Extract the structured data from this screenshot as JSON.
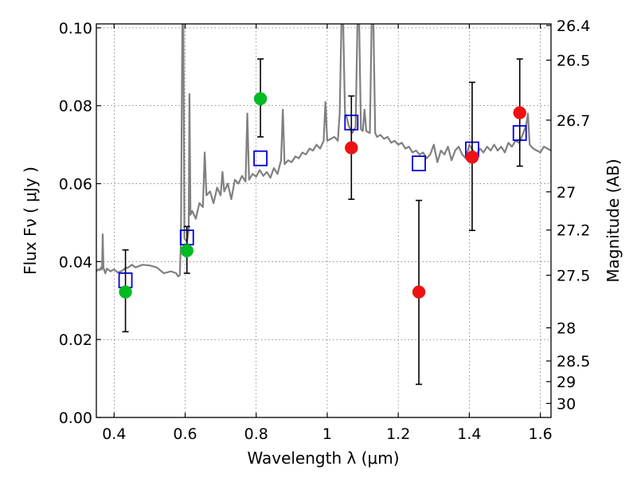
{
  "chart_data": {
    "type": "scatter",
    "xlabel": "Wavelength  λ (μm)",
    "ylabel": "Flux  Fν  ( μJy )",
    "y2label": "Magnitude (AB)",
    "xlim": [
      0.35,
      1.63
    ],
    "ylim": [
      0.0,
      0.101
    ],
    "grid": true,
    "x_ticks": [
      {
        "value": 0.4,
        "label": "0.4"
      },
      {
        "value": 0.6,
        "label": "0.6"
      },
      {
        "value": 0.8,
        "label": "0.8"
      },
      {
        "value": 1.0,
        "label": "1"
      },
      {
        "value": 1.2,
        "label": "1.2"
      },
      {
        "value": 1.4,
        "label": "1.4"
      },
      {
        "value": 1.6,
        "label": "1.6"
      }
    ],
    "y_ticks": [
      {
        "value": 0.0,
        "label": "0.00"
      },
      {
        "value": 0.02,
        "label": "0.02"
      },
      {
        "value": 0.04,
        "label": "0.04"
      },
      {
        "value": 0.06,
        "label": "0.06"
      },
      {
        "value": 0.08,
        "label": "0.08"
      },
      {
        "value": 0.1,
        "label": "0.10"
      }
    ],
    "magnitude_ticks": [
      {
        "label": "26.4",
        "flux": 0.1006
      },
      {
        "label": "26.5",
        "flux": 0.0917
      },
      {
        "label": "26.7",
        "flux": 0.0763
      },
      {
        "label": "27",
        "flux": 0.0579
      },
      {
        "label": "27.2",
        "flux": 0.0481
      },
      {
        "label": "27.5",
        "flux": 0.0365
      },
      {
        "label": "28",
        "flux": 0.023
      },
      {
        "label": "28.5",
        "flux": 0.0145
      },
      {
        "label": "29",
        "flux": 0.0092
      },
      {
        "label": "30",
        "flux": 0.0036
      }
    ],
    "series": [
      {
        "kind": "line",
        "color": "#808080",
        "points": [
          [
            0.35,
            0.0375
          ],
          [
            0.355,
            0.038
          ],
          [
            0.36,
            0.0378
          ],
          [
            0.363,
            0.0385
          ],
          [
            0.366,
            0.038
          ],
          [
            0.368,
            0.047
          ],
          [
            0.37,
            0.0385
          ],
          [
            0.375,
            0.037
          ],
          [
            0.38,
            0.0382
          ],
          [
            0.39,
            0.0375
          ],
          [
            0.4,
            0.038
          ],
          [
            0.41,
            0.0372
          ],
          [
            0.42,
            0.0375
          ],
          [
            0.43,
            0.0382
          ],
          [
            0.44,
            0.0385
          ],
          [
            0.45,
            0.0392
          ],
          [
            0.46,
            0.0385
          ],
          [
            0.48,
            0.0392
          ],
          [
            0.5,
            0.039
          ],
          [
            0.52,
            0.0385
          ],
          [
            0.54,
            0.037
          ],
          [
            0.56,
            0.0375
          ],
          [
            0.575,
            0.037
          ],
          [
            0.58,
            0.0362
          ],
          [
            0.585,
            0.0365
          ],
          [
            0.588,
            0.045
          ],
          [
            0.592,
            0.101
          ],
          [
            0.595,
            0.101
          ],
          [
            0.598,
            0.046
          ],
          [
            0.605,
            0.045
          ],
          [
            0.61,
            0.048
          ],
          [
            0.612,
            0.083
          ],
          [
            0.615,
            0.052
          ],
          [
            0.62,
            0.053
          ],
          [
            0.63,
            0.051
          ],
          [
            0.64,
            0.055
          ],
          [
            0.65,
            0.054
          ],
          [
            0.655,
            0.068
          ],
          [
            0.66,
            0.057
          ],
          [
            0.67,
            0.058
          ],
          [
            0.68,
            0.055
          ],
          [
            0.69,
            0.059
          ],
          [
            0.7,
            0.057
          ],
          [
            0.705,
            0.063
          ],
          [
            0.71,
            0.058
          ],
          [
            0.72,
            0.06
          ],
          [
            0.73,
            0.056
          ],
          [
            0.74,
            0.061
          ],
          [
            0.75,
            0.06
          ],
          [
            0.76,
            0.062
          ],
          [
            0.77,
            0.0605
          ],
          [
            0.775,
            0.078
          ],
          [
            0.78,
            0.061
          ],
          [
            0.79,
            0.0625
          ],
          [
            0.8,
            0.0618
          ],
          [
            0.81,
            0.0635
          ],
          [
            0.82,
            0.062
          ],
          [
            0.83,
            0.063
          ],
          [
            0.84,
            0.0615
          ],
          [
            0.85,
            0.064
          ],
          [
            0.86,
            0.0625
          ],
          [
            0.87,
            0.066
          ],
          [
            0.875,
            0.079
          ],
          [
            0.88,
            0.065
          ],
          [
            0.89,
            0.066
          ],
          [
            0.9,
            0.0655
          ],
          [
            0.91,
            0.067
          ],
          [
            0.92,
            0.0665
          ],
          [
            0.93,
            0.068
          ],
          [
            0.94,
            0.0675
          ],
          [
            0.95,
            0.069
          ],
          [
            0.96,
            0.0685
          ],
          [
            0.97,
            0.07
          ],
          [
            0.98,
            0.069
          ],
          [
            0.99,
            0.071
          ],
          [
            0.995,
            0.081
          ],
          [
            1.0,
            0.071
          ],
          [
            1.01,
            0.0715
          ],
          [
            1.02,
            0.072
          ],
          [
            1.03,
            0.071
          ],
          [
            1.035,
            0.078
          ],
          [
            1.04,
            0.101
          ],
          [
            1.045,
            0.101
          ],
          [
            1.05,
            0.078
          ],
          [
            1.055,
            0.077
          ],
          [
            1.06,
            0.075
          ],
          [
            1.07,
            0.073
          ],
          [
            1.08,
            0.0745
          ],
          [
            1.085,
            0.101
          ],
          [
            1.09,
            0.101
          ],
          [
            1.095,
            0.074
          ],
          [
            1.1,
            0.0735
          ],
          [
            1.105,
            0.079
          ],
          [
            1.11,
            0.0735
          ],
          [
            1.12,
            0.073
          ],
          [
            1.125,
            0.101
          ],
          [
            1.13,
            0.101
          ],
          [
            1.135,
            0.073
          ],
          [
            1.14,
            0.072
          ],
          [
            1.15,
            0.0725
          ],
          [
            1.16,
            0.0715
          ],
          [
            1.17,
            0.072
          ],
          [
            1.18,
            0.0705
          ],
          [
            1.19,
            0.071
          ],
          [
            1.2,
            0.07
          ],
          [
            1.21,
            0.0705
          ],
          [
            1.22,
            0.069
          ],
          [
            1.23,
            0.0695
          ],
          [
            1.24,
            0.068
          ],
          [
            1.25,
            0.0685
          ],
          [
            1.26,
            0.0675
          ],
          [
            1.27,
            0.068
          ],
          [
            1.28,
            0.0665
          ],
          [
            1.29,
            0.0675
          ],
          [
            1.3,
            0.07
          ],
          [
            1.31,
            0.0655
          ],
          [
            1.32,
            0.0685
          ],
          [
            1.33,
            0.0675
          ],
          [
            1.34,
            0.0695
          ],
          [
            1.35,
            0.066
          ],
          [
            1.36,
            0.0685
          ],
          [
            1.37,
            0.0695
          ],
          [
            1.38,
            0.0675
          ],
          [
            1.39,
            0.0665
          ],
          [
            1.4,
            0.07
          ],
          [
            1.41,
            0.0685
          ],
          [
            1.42,
            0.0675
          ],
          [
            1.43,
            0.069
          ],
          [
            1.44,
            0.068
          ],
          [
            1.45,
            0.0695
          ],
          [
            1.46,
            0.0685
          ],
          [
            1.47,
            0.07
          ],
          [
            1.48,
            0.0685
          ],
          [
            1.49,
            0.0695
          ],
          [
            1.5,
            0.068
          ],
          [
            1.51,
            0.0705
          ],
          [
            1.52,
            0.0695
          ],
          [
            1.53,
            0.071
          ],
          [
            1.54,
            0.0705
          ],
          [
            1.55,
            0.0725
          ],
          [
            1.56,
            0.075
          ],
          [
            1.565,
            0.078
          ],
          [
            1.57,
            0.07
          ],
          [
            1.58,
            0.069
          ],
          [
            1.59,
            0.0685
          ],
          [
            1.6,
            0.068
          ],
          [
            1.61,
            0.0695
          ],
          [
            1.62,
            0.069
          ],
          [
            1.63,
            0.0685
          ]
        ]
      },
      {
        "kind": "markers",
        "marker": "square",
        "color": "#0000dd",
        "x": [
          0.432,
          0.605,
          0.812,
          1.068,
          1.258,
          1.408,
          1.542
        ],
        "y": [
          0.0352,
          0.0462,
          0.0665,
          0.0757,
          0.0652,
          0.0688,
          0.073
        ]
      },
      {
        "kind": "markers",
        "marker": "circle",
        "color": "#00bb22",
        "x": [
          0.432,
          0.605,
          0.812
        ],
        "y": [
          0.0322,
          0.0428,
          0.0818
        ],
        "yerr_low": [
          0.0102,
          0.0058,
          0.0098
        ],
        "yerr_high": [
          0.0108,
          0.0062,
          0.0102
        ]
      },
      {
        "kind": "markers",
        "marker": "circle",
        "color": "#ee1111",
        "x": [
          1.068,
          1.258,
          1.408,
          1.542
        ],
        "y": [
          0.0692,
          0.0322,
          0.0668,
          0.0782
        ],
        "yerr_low": [
          0.0132,
          0.0237,
          0.0188,
          0.0137
        ],
        "yerr_high": [
          0.0133,
          0.0235,
          0.0192,
          0.0138
        ]
      }
    ]
  }
}
